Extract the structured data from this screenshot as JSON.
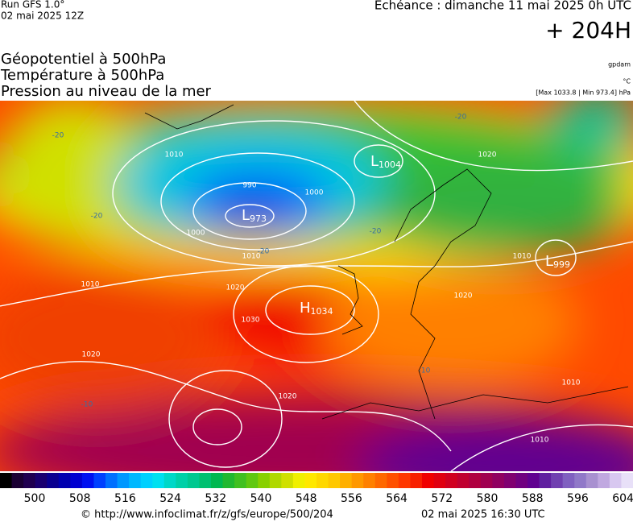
{
  "header": {
    "run": "Run GFS 1.0°",
    "run_date": "02 mai 2025 12Z",
    "echeance": "Echéance : dimanche 11 mai 2025 0h UTC",
    "lead": "+ 204H"
  },
  "titles": [
    "Géopotentiel à 500hPa",
    "Température à 500hPa",
    "Pression au niveau de la mer"
  ],
  "units": {
    "geopotential": "gpdam",
    "temperature": "°C",
    "pressure": "[Max 1033.8 | Min 973.4] hPa"
  },
  "map": {
    "centers": [
      {
        "type": "H",
        "value": "1034"
      },
      {
        "type": "L",
        "value": "973"
      },
      {
        "type": "L",
        "value": "1004"
      },
      {
        "type": "L",
        "value": "999"
      }
    ],
    "isobar_labels": [
      "1020",
      "1010",
      "1020",
      "1030",
      "1020",
      "1020",
      "1010",
      "1010",
      "1000",
      "990",
      "1000",
      "1020",
      "1010",
      "1010",
      "1010"
    ],
    "temperature_labels": [
      "-20",
      "-20",
      "-20",
      "-20",
      "-10",
      "-10",
      "-20"
    ]
  },
  "colorbar": {
    "labels": [
      "500",
      "508",
      "516",
      "524",
      "532",
      "540",
      "548",
      "556",
      "564",
      "572",
      "580",
      "588",
      "596",
      "604"
    ],
    "colors": [
      "#000000",
      "#1a0033",
      "#200050",
      "#1a0070",
      "#0a0090",
      "#0000b0",
      "#0000d0",
      "#0010f0",
      "#0040ff",
      "#0070ff",
      "#0098ff",
      "#00b8ff",
      "#00d0ff",
      "#00e0f0",
      "#00d8c8",
      "#00d0a8",
      "#00c890",
      "#00c070",
      "#00b850",
      "#20b830",
      "#40c020",
      "#60c810",
      "#88d000",
      "#b0d800",
      "#d0e000",
      "#f0f000",
      "#ffe800",
      "#ffd800",
      "#ffc800",
      "#ffb000",
      "#ff9800",
      "#ff8000",
      "#ff6800",
      "#ff5000",
      "#ff3800",
      "#f82000",
      "#f00000",
      "#e00010",
      "#d00020",
      "#c00030",
      "#b00040",
      "#a00050",
      "#900060",
      "#800070",
      "#700080",
      "#600090",
      "#6020a0",
      "#7040b0",
      "#8060c0",
      "#9078c8",
      "#a890d0",
      "#c0a8e0",
      "#d8c8f0",
      "#e8e0f8"
    ]
  },
  "footer": {
    "url": "© http://www.infoclimat.fr/z/gfs/europe/500/204",
    "generated": "02 mai 2025 16:30 UTC"
  }
}
